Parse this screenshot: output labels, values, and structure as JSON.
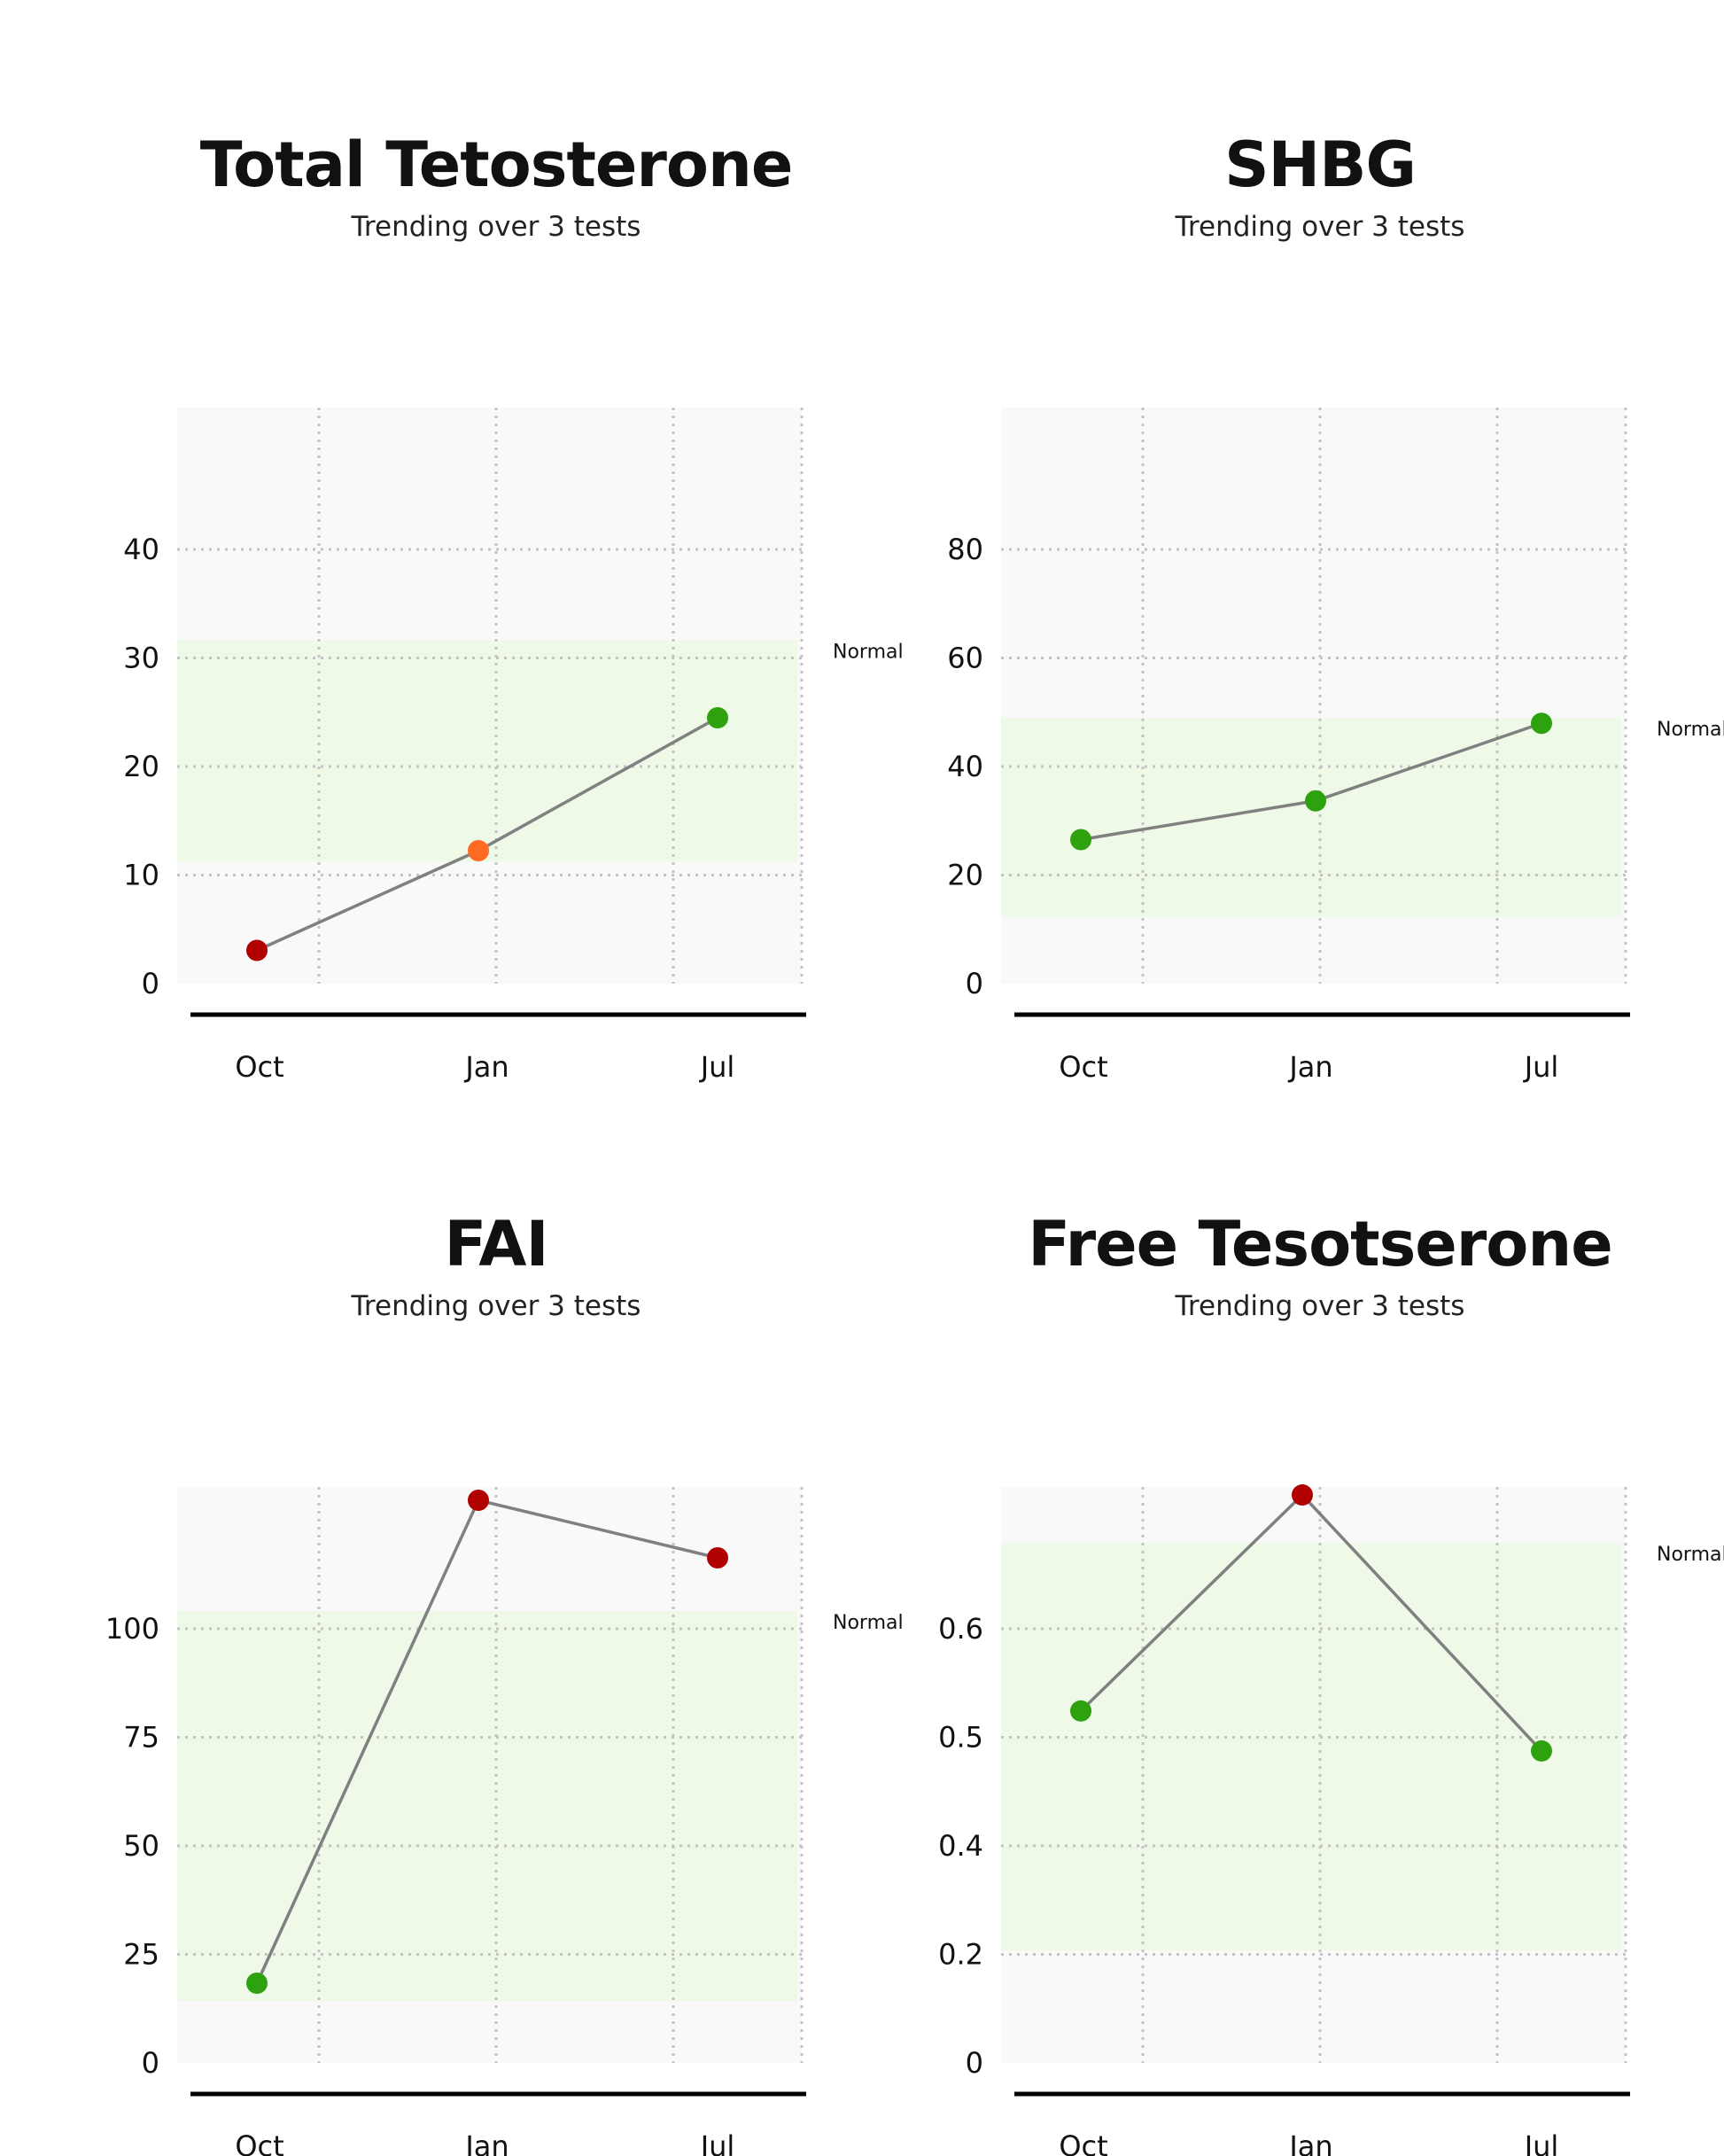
{
  "colors": {
    "plot_bg": "#f9f9f9",
    "normal_band": "#eef9e8",
    "grid": "#c4c4c4",
    "line": "#808080",
    "axis": "#000000",
    "status_normal": "#2ea10f",
    "status_borderline": "#ff6a22",
    "status_abnormal": "#b00000"
  },
  "chart_data": [
    {
      "type": "line",
      "title": "Total Tetosterone",
      "subtitle": "Trending over 3 tests",
      "categories": [
        "Oct",
        "Jan",
        "Jul"
      ],
      "y_ticks": [
        "0",
        "10",
        "20",
        "30",
        "40"
      ],
      "series": [
        {
          "values": [
            3,
            12,
            24
          ]
        }
      ],
      "point_status": [
        "abnormal",
        "borderline",
        "normal"
      ],
      "normal_range": {
        "label": "Normal",
        "low": 11,
        "high": 31
      },
      "ylim": [
        0,
        52
      ],
      "grid": true
    },
    {
      "type": "line",
      "title": "SHBG",
      "subtitle": "Trending over 3 tests",
      "categories": [
        "Oct",
        "Jan",
        "Jul"
      ],
      "y_ticks": [
        "0",
        "20",
        "40",
        "60",
        "80"
      ],
      "series": [
        {
          "values": [
            26,
            33,
            47
          ]
        }
      ],
      "point_status": [
        "normal",
        "normal",
        "normal"
      ],
      "normal_range": {
        "label": "Normal",
        "low": 12,
        "high": 48
      },
      "ylim": [
        0,
        104
      ],
      "grid": true
    },
    {
      "type": "line",
      "title": "FAI",
      "subtitle": "Trending over 3 tests",
      "categories": [
        "Oct",
        "Jan",
        "Jul"
      ],
      "y_ticks": [
        "0",
        "25",
        "50",
        "75",
        "100"
      ],
      "series": [
        {
          "values": [
            18,
            127,
            114
          ]
        }
      ],
      "point_status": [
        "normal",
        "abnormal",
        "abnormal"
      ],
      "normal_range": {
        "label": "Normal",
        "low": 14,
        "high": 102
      },
      "ylim": [
        0,
        130
      ],
      "grid": true
    },
    {
      "type": "line",
      "title": "Free Tesotserone",
      "subtitle": "Trending over 3 tests",
      "categories": [
        "Oct",
        "Jan",
        "Jul"
      ],
      "y_ticks": [
        "0",
        "0.2",
        "0.4",
        "0.5",
        "0.6"
      ],
      "series": [
        {
          "values": [
            0.44,
            0.71,
            0.39
          ]
        }
      ],
      "point_status": [
        "normal",
        "abnormal",
        "normal"
      ],
      "normal_range": {
        "label": "Normal",
        "low": 0.14,
        "high": 0.65
      },
      "ylim": [
        0,
        0.72
      ],
      "grid": true
    }
  ]
}
